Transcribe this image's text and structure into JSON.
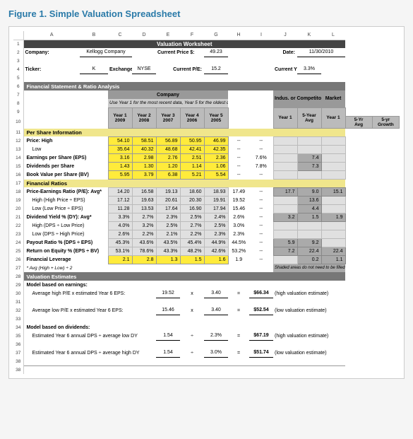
{
  "figure_title": "Figure 1. Simple Valuation Spreadsheet",
  "columns": [
    "A",
    "B",
    "C",
    "D",
    "E",
    "F",
    "G",
    "H",
    "I",
    "J",
    "K",
    "L"
  ],
  "worksheet_title": "Valuation Worksheet",
  "info": {
    "company_label": "Company:",
    "company": "Kellogg Company",
    "price_label": "Current Price $:",
    "price": "49.23",
    "date_label": "Date:",
    "date": "11/30/2010",
    "ticker_label": "Ticker:",
    "ticker": "K",
    "exchange_label": "Exchange:",
    "exchange": "NYSE",
    "pe_label": "Current P/E:",
    "pe": "15.2",
    "yield_label": "Current Yield:",
    "yield": "3.3%"
  },
  "section_fs": "Financial Statement & Ratio Analysis",
  "group_company": "Company",
  "group_use": "Use Year 1 for the most recent data, Year 5 for the oldest data.",
  "group_indus": "Indus. or Competitor",
  "group_market": "Market",
  "year_headers": [
    "Year 1\n2009",
    "Year 2\n2008",
    "Year 3\n2007",
    "Year 4\n2006",
    "Year 5\n2005",
    "5-Yr\nAvg",
    "5-yr\nGrowth",
    "Year 1",
    "5-Year\nAvg",
    "Year 1"
  ],
  "per_share": "Per Share Information",
  "rows_ps": [
    {
      "n": "12",
      "label": "Price: High",
      "vals": [
        "54.10",
        "58.51",
        "56.89",
        "50.95",
        "46.99"
      ],
      "y": true,
      "avg": "--",
      "growth": "--"
    },
    {
      "n": "13",
      "label": "Low",
      "indent": true,
      "vals": [
        "35.64",
        "40.32",
        "48.68",
        "42.41",
        "42.35"
      ],
      "y": true,
      "avg": "--",
      "growth": "--"
    },
    {
      "n": "14",
      "label": "Earnings per Share (EPS)",
      "vals": [
        "3.16",
        "2.98",
        "2.76",
        "2.51",
        "2.36"
      ],
      "y": true,
      "avg": "--",
      "growth": "7.6%",
      "comp_avg": "7.4"
    },
    {
      "n": "15",
      "label": "Dividends per Share",
      "vals": [
        "1.43",
        "1.30",
        "1.20",
        "1.14",
        "1.06"
      ],
      "y": true,
      "avg": "--",
      "growth": "7.8%",
      "comp_avg": "7.3"
    },
    {
      "n": "16",
      "label": "Book Value per Share (BV)",
      "vals": [
        "5.95",
        "3.79",
        "6.38",
        "5.21",
        "5.54"
      ],
      "y": true,
      "avg": "--",
      "growth": "--"
    }
  ],
  "fin_ratios": "Financial Ratios",
  "rows_fr": [
    {
      "n": "18",
      "label": "Price-Earnings Ratio (P/E): Avg*",
      "vals": [
        "14.20",
        "16.58",
        "19.13",
        "18.60",
        "18.93"
      ],
      "avg": "17.49",
      "growth": "--",
      "comp_y1": "17.7",
      "comp_avg": "9.0",
      "mkt": "15.1"
    },
    {
      "n": "19",
      "label": "High (High Price ÷ EPS)",
      "indent": true,
      "vals": [
        "17.12",
        "19.63",
        "20.61",
        "20.30",
        "19.91"
      ],
      "avg": "19.52",
      "growth": "--",
      "comp_avg": "13.6"
    },
    {
      "n": "20",
      "label": "Low (Low Price ÷ EPS)",
      "indent": true,
      "vals": [
        "11.28",
        "13.53",
        "17.64",
        "16.90",
        "17.94"
      ],
      "avg": "15.46",
      "growth": "--",
      "comp_avg": "4.4"
    },
    {
      "n": "21",
      "label": "Dividend Yield % (DY): Avg*",
      "vals": [
        "3.3%",
        "2.7%",
        "2.3%",
        "2.5%",
        "2.4%"
      ],
      "avg": "2.6%",
      "growth": "--",
      "comp_y1": "3.2",
      "comp_avg": "1.5",
      "mkt": "1.9"
    },
    {
      "n": "22",
      "label": "High (DPS ÷ Low Price)",
      "indent": true,
      "vals": [
        "4.0%",
        "3.2%",
        "2.5%",
        "2.7%",
        "2.5%"
      ],
      "avg": "3.0%",
      "growth": "--"
    },
    {
      "n": "23",
      "label": "Low (DPS ÷ High Price)",
      "indent": true,
      "vals": [
        "2.6%",
        "2.2%",
        "2.1%",
        "2.2%",
        "2.3%"
      ],
      "avg": "2.3%",
      "growth": "--"
    },
    {
      "n": "24",
      "label": "Payout Ratio % (DPS ÷ EPS)",
      "vals": [
        "45.3%",
        "43.6%",
        "43.5%",
        "45.4%",
        "44.9%"
      ],
      "avg": "44.5%",
      "growth": "--",
      "comp_y1": "5.9",
      "comp_avg": "9.2"
    },
    {
      "n": "25",
      "label": "Return on Equity % (EPS ÷ BV)",
      "vals": [
        "53.1%",
        "78.6%",
        "43.3%",
        "48.2%",
        "42.6%"
      ],
      "avg": "53.2%",
      "growth": "--",
      "comp_y1": "7.2",
      "comp_avg": "22.4",
      "mkt": "22.4"
    },
    {
      "n": "26",
      "label": "Financial Leverage",
      "vals": [
        "2.1",
        "2.8",
        "1.3",
        "1.5",
        "1.6"
      ],
      "y": true,
      "avg": "1.9",
      "growth": "--",
      "comp_avg": "0.2",
      "mkt": "1.1"
    }
  ],
  "row27": "* Avg (High + Low) ÷ 2",
  "shaded_note": "Shaded areas do not need to be filled in.",
  "val_est": "Valuation Estimates",
  "model_earnings": "Model based on earnings:",
  "est_rows": [
    {
      "n": "30",
      "label": "Average high P/E x estimated Year 6 EPS:",
      "a": "19.52",
      "op": "x",
      "b": "3.40",
      "eq": "=",
      "res": "$66.34",
      "note": "(high valuation estimate)"
    },
    {
      "n": "32",
      "label": "Average low P/E x estimated Year 6 EPS:",
      "a": "15.46",
      "op": "x",
      "b": "3.40",
      "eq": "=",
      "res": "$52.54",
      "note": "(low valuation estimate)"
    }
  ],
  "model_div": "Model based on dividends:",
  "est_rows2": [
    {
      "n": "35",
      "label": "Estimated Year 6 annual DPS ÷ average low DY",
      "a": "1.54",
      "op": "÷",
      "b": "2.3%",
      "eq": "=",
      "res": "$67.19",
      "note": "(high valuation estimate)"
    },
    {
      "n": "37",
      "label": "Estimated Year 6 annual DPS ÷ average high DY",
      "a": "1.54",
      "op": "÷",
      "b": "3.0%",
      "eq": "=",
      "res": "$51.74",
      "note": "(low valuation estimate)"
    }
  ]
}
